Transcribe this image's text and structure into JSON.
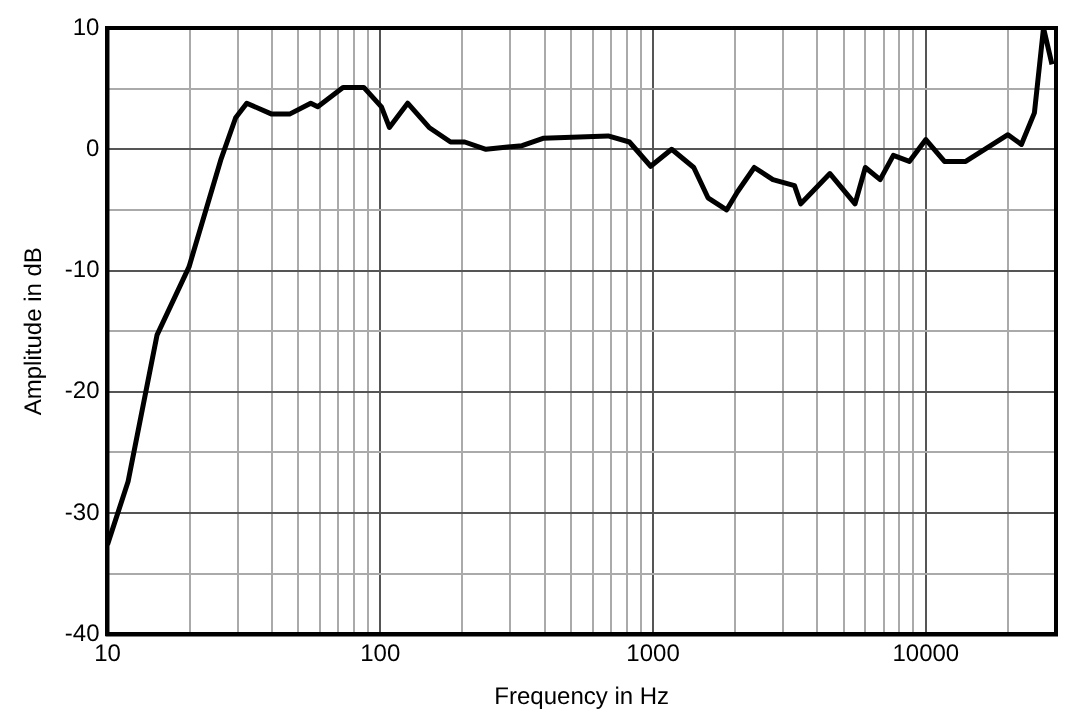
{
  "chart_data": {
    "type": "line",
    "xlabel": "Frequency in Hz",
    "ylabel": "Amplitude in dB",
    "log": "x",
    "grid": true,
    "legend": false,
    "marker": "none",
    "line_style": "solid",
    "xlim": [
      10,
      30000
    ],
    "ylim": [
      -40,
      10
    ],
    "xticks": [
      10,
      {
        "value": 20,
        "label": null
      },
      {
        "value": 30,
        "label": null
      },
      {
        "value": 40,
        "label": null
      },
      {
        "value": 50,
        "label": null
      },
      {
        "value": 60,
        "label": null
      },
      {
        "value": 70,
        "label": null
      },
      {
        "value": 80,
        "label": null
      },
      {
        "value": 90,
        "label": null
      },
      100,
      {
        "value": 200,
        "label": null
      },
      {
        "value": 300,
        "label": null
      },
      {
        "value": 400,
        "label": null
      },
      {
        "value": 500,
        "label": null
      },
      {
        "value": 600,
        "label": null
      },
      {
        "value": 700,
        "label": null
      },
      {
        "value": 800,
        "label": null
      },
      {
        "value": 900,
        "label": null
      },
      1000,
      {
        "value": 2000,
        "label": null
      },
      {
        "value": 3000,
        "label": null
      },
      {
        "value": 4000,
        "label": null
      },
      {
        "value": 5000,
        "label": null
      },
      {
        "value": 6000,
        "label": null
      },
      {
        "value": 7000,
        "label": null
      },
      {
        "value": 8000,
        "label": null
      },
      {
        "value": 9000,
        "label": null
      },
      10000,
      {
        "value": 20000,
        "label": null
      }
    ],
    "yticks": [
      -40,
      {
        "value": -35,
        "label": null
      },
      -30,
      {
        "value": -25,
        "label": null
      },
      -20,
      {
        "value": -15,
        "label": null
      },
      -10,
      {
        "value": -5,
        "label": null
      },
      0,
      {
        "value": 5,
        "label": null
      },
      10
    ],
    "series": [
      {
        "color": "#000000",
        "x": [
          10,
          11.9,
          15.2,
          19.9,
          26,
          29.5,
          32.4,
          40,
          46.5,
          55.6,
          59,
          73,
          87,
          101,
          108,
          126,
          151,
          181,
          204,
          244,
          331,
          395,
          684,
          819,
          980,
          1170,
          1410,
          1590,
          1860,
          2040,
          2350,
          2750,
          3300,
          3480,
          4450,
          5500,
          6000,
          6800,
          7600,
          8700,
          10000,
          11700,
          14000,
          20000,
          22400,
          25000,
          27000,
          29000
        ],
        "values": [
          -32.6,
          -27.4,
          -15.3,
          -9.7,
          -0.9,
          2.6,
          3.8,
          2.9,
          2.9,
          3.8,
          3.5,
          5.1,
          5.1,
          3.5,
          1.8,
          3.8,
          1.8,
          0.6,
          0.6,
          0,
          0.3,
          0.9,
          1.1,
          0.6,
          -1.4,
          0,
          -1.5,
          -4,
          -5,
          -3.5,
          -1.5,
          -2.5,
          -3,
          -4.5,
          -2,
          -4.5,
          -1.5,
          -2.5,
          -0.5,
          -1,
          0.8,
          -1,
          -1,
          1.2,
          0.4,
          3,
          10,
          7
        ]
      }
    ]
  }
}
